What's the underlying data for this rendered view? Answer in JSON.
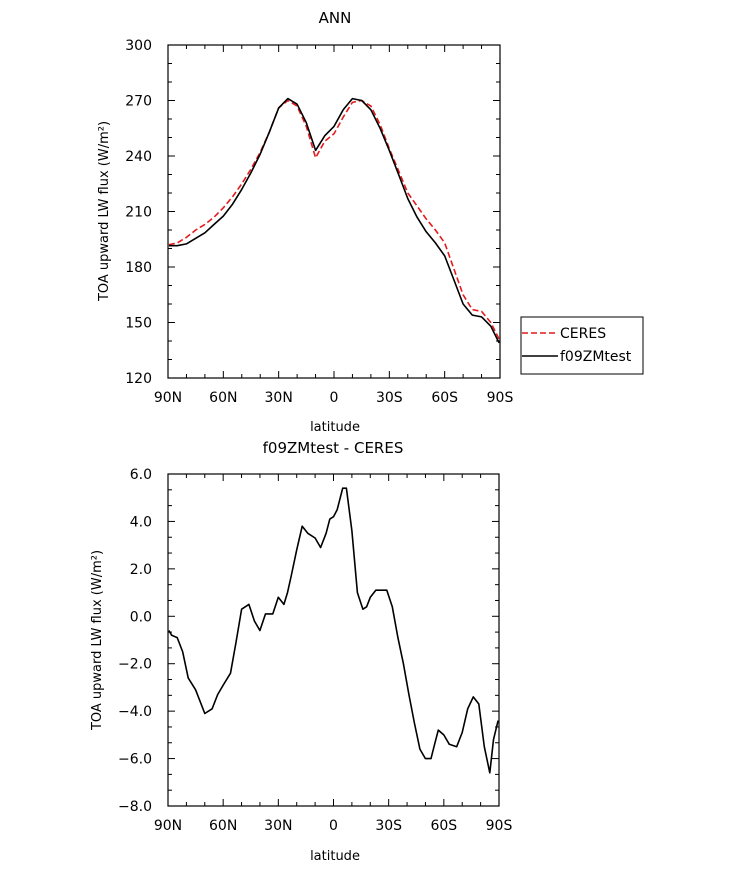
{
  "chart_data": [
    {
      "type": "line",
      "title": "ANN",
      "xlabel": "",
      "ylabel": "TOA upward LW flux (W/m²)",
      "xlim": [
        90,
        -90
      ],
      "ylim": [
        120,
        300
      ],
      "x_ticks": [
        90,
        60,
        30,
        0,
        -30,
        -60,
        -90
      ],
      "x_tick_labels": [
        "90N",
        "60N",
        "30N",
        "0",
        "30S",
        "60S",
        "90S"
      ],
      "y_ticks": [
        120,
        150,
        180,
        210,
        240,
        270,
        300
      ],
      "y_tick_labels": [
        "120",
        "150",
        "180",
        "210",
        "240",
        "270",
        "300"
      ],
      "grid": false,
      "legend_position": "right-outside-bottom",
      "series": [
        {
          "name": "CERES",
          "color": "#e41a1c",
          "dash": "dashed",
          "x": [
            89.5,
            85,
            80,
            75,
            70,
            65,
            60,
            55,
            50,
            45,
            40,
            35,
            30,
            25,
            20,
            15,
            10,
            5,
            0,
            -5,
            -10,
            -15,
            -20,
            -25,
            -30,
            -35,
            -40,
            -45,
            -50,
            -55,
            -60,
            -65,
            -70,
            -75,
            -80,
            -85,
            -89.5
          ],
          "y": [
            192,
            193,
            196,
            200,
            203,
            207,
            212,
            218,
            225,
            233,
            242,
            253,
            266,
            270,
            267,
            256,
            239,
            248,
            252,
            261,
            269,
            270,
            267,
            257,
            244,
            232,
            220,
            213,
            206,
            200,
            193,
            179,
            165,
            157,
            156,
            150,
            141
          ]
        },
        {
          "name": "f09ZMtest",
          "color": "#000000",
          "dash": "solid",
          "x": [
            89.5,
            85,
            80,
            75,
            70,
            65,
            60,
            55,
            50,
            45,
            40,
            35,
            30,
            25,
            20,
            15,
            10,
            5,
            0,
            -5,
            -10,
            -15,
            -20,
            -25,
            -30,
            -35,
            -40,
            -45,
            -50,
            -55,
            -60,
            -65,
            -70,
            -75,
            -80,
            -85,
            -89.5
          ],
          "y": [
            191.5,
            191.5,
            192.5,
            195.5,
            198.5,
            203,
            207.5,
            214,
            222,
            231,
            241,
            253,
            266,
            271,
            268,
            258,
            243,
            251,
            256,
            265,
            271,
            270,
            265,
            255,
            243,
            230,
            217,
            207,
            199,
            193,
            186,
            173,
            160,
            154,
            153,
            148,
            139
          ]
        }
      ]
    },
    {
      "type": "line",
      "title": "f09ZMtest - CERES",
      "xlabel": "latitude",
      "ylabel": "TOA upward LW flux (W/m²)",
      "xlim": [
        90,
        -90
      ],
      "ylim": [
        -8,
        6
      ],
      "x_ticks": [
        90,
        60,
        30,
        0,
        -30,
        -60,
        -90
      ],
      "x_tick_labels": [
        "90N",
        "60N",
        "30N",
        "0",
        "30S",
        "60S",
        "90S"
      ],
      "y_ticks": [
        -8,
        -6,
        -4,
        -2,
        0,
        2,
        4,
        6
      ],
      "y_tick_labels": [
        "−8.0",
        "−6.0",
        "−4.0",
        "−2.0",
        "0.0",
        "2.0",
        "4.0",
        "6.0"
      ],
      "grid": false,
      "series": [
        {
          "color": "#000000",
          "x": [
            89.5,
            88,
            85,
            82,
            79,
            75,
            70,
            66,
            63,
            60,
            56,
            53,
            50,
            46,
            43,
            40,
            37,
            33,
            30,
            27,
            25,
            23,
            20,
            17,
            14,
            10,
            7,
            4,
            2,
            0,
            -2,
            -5,
            -7,
            -10,
            -13,
            -16,
            -18,
            -20,
            -23,
            -26,
            -29,
            -32,
            -35,
            -38,
            -41,
            -44,
            -47,
            -50,
            -53,
            -55,
            -57,
            -60,
            -63,
            -67,
            -70,
            -73,
            -76,
            -79,
            -82,
            -85,
            -87,
            -89.5
          ],
          "y": [
            -0.6,
            -0.8,
            -0.9,
            -1.5,
            -2.6,
            -3.1,
            -4.1,
            -3.9,
            -3.3,
            -2.9,
            -2.4,
            -1.1,
            0.3,
            0.5,
            -0.2,
            -0.6,
            0.1,
            0.1,
            0.8,
            0.5,
            1.0,
            1.7,
            2.8,
            3.8,
            3.5,
            3.3,
            2.9,
            3.5,
            4.1,
            4.2,
            4.5,
            5.4,
            5.4,
            3.6,
            1.0,
            0.3,
            0.4,
            0.8,
            1.1,
            1.1,
            1.1,
            0.4,
            -0.9,
            -2.0,
            -3.3,
            -4.5,
            -5.6,
            -6.0,
            -6.0,
            -5.4,
            -4.8,
            -5.0,
            -5.4,
            -5.5,
            -4.9,
            -3.9,
            -3.4,
            -3.7,
            -5.5,
            -6.6,
            -5.2,
            -4.4
          ]
        }
      ]
    }
  ],
  "legend": {
    "items": [
      {
        "label": "CERES",
        "color": "#e41a1c",
        "dash": "dashed"
      },
      {
        "label": "f09ZMtest",
        "color": "#000000",
        "dash": "solid"
      }
    ]
  },
  "top_xlabel": "latitude"
}
